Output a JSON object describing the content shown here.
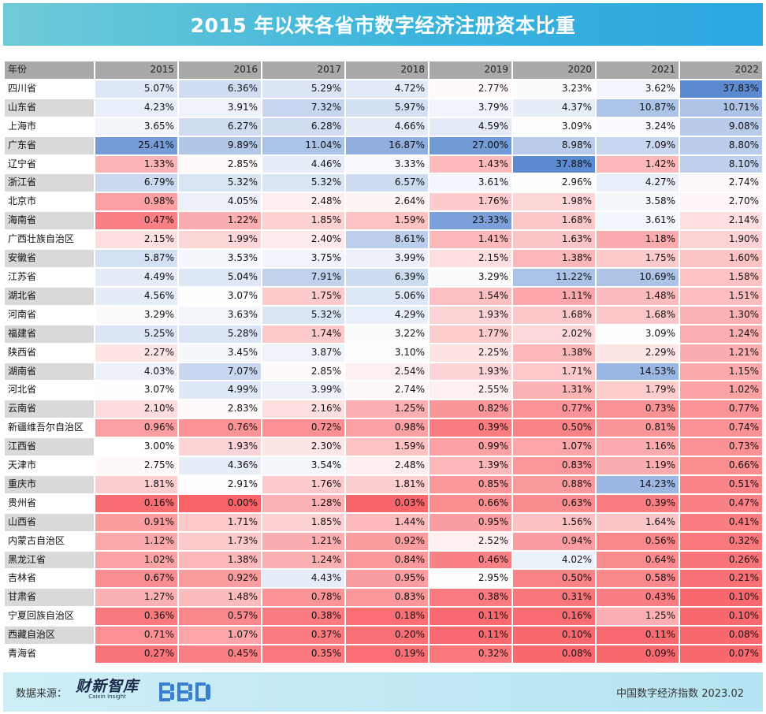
{
  "title": "2015 年以来各省市数字经济注册资本比重",
  "footer": {
    "source_label": "数据来源：",
    "brand_name": "财新智库",
    "brand_sub": "Caixin Insight",
    "logo_text": "BBD",
    "index_label": "中国数字经济指数 2023.02"
  },
  "chart_data": {
    "type": "table",
    "title": "2015 年以来各省市数字经济注册资本比重",
    "header_label": "年份",
    "years": [
      "2015",
      "2016",
      "2017",
      "2018",
      "2019",
      "2020",
      "2021",
      "2022"
    ],
    "unit": "%",
    "color_scale": {
      "low": "#f86368",
      "mid": "#ffffff",
      "high": "#5c8ad0"
    },
    "rows": [
      {
        "province": "四川省",
        "values": [
          5.07,
          6.36,
          5.29,
          4.72,
          2.77,
          3.23,
          3.62,
          37.83
        ]
      },
      {
        "province": "山东省",
        "values": [
          4.23,
          3.91,
          7.32,
          5.97,
          3.79,
          4.37,
          10.87,
          10.71
        ]
      },
      {
        "province": "上海市",
        "values": [
          3.65,
          6.27,
          6.28,
          4.66,
          4.59,
          3.09,
          3.24,
          9.08
        ]
      },
      {
        "province": "广东省",
        "values": [
          25.41,
          9.89,
          11.04,
          16.87,
          27.0,
          8.98,
          7.09,
          8.8
        ]
      },
      {
        "province": "辽宁省",
        "values": [
          1.33,
          2.85,
          4.46,
          3.33,
          1.43,
          37.88,
          1.42,
          8.1
        ]
      },
      {
        "province": "浙江省",
        "values": [
          6.79,
          5.32,
          5.32,
          6.57,
          3.61,
          2.96,
          4.27,
          2.74
        ]
      },
      {
        "province": "北京市",
        "values": [
          0.98,
          4.05,
          2.48,
          2.64,
          1.76,
          1.98,
          3.58,
          2.7
        ]
      },
      {
        "province": "海南省",
        "values": [
          0.47,
          1.22,
          1.85,
          1.59,
          23.33,
          1.68,
          3.61,
          2.14
        ]
      },
      {
        "province": "广西壮族自治区",
        "values": [
          2.15,
          1.99,
          2.4,
          8.61,
          1.41,
          1.63,
          1.18,
          1.9
        ]
      },
      {
        "province": "安徽省",
        "values": [
          5.87,
          3.53,
          3.75,
          3.99,
          2.15,
          1.38,
          1.75,
          1.6
        ]
      },
      {
        "province": "江苏省",
        "values": [
          4.49,
          5.04,
          7.91,
          6.39,
          3.29,
          11.22,
          10.69,
          1.58
        ]
      },
      {
        "province": "湖北省",
        "values": [
          4.56,
          3.07,
          1.75,
          5.06,
          1.54,
          1.11,
          1.48,
          1.51
        ]
      },
      {
        "province": "河南省",
        "values": [
          3.29,
          3.63,
          5.32,
          4.29,
          1.93,
          1.68,
          1.68,
          1.3
        ]
      },
      {
        "province": "福建省",
        "values": [
          5.25,
          5.28,
          1.74,
          3.22,
          1.77,
          2.02,
          3.09,
          1.24
        ]
      },
      {
        "province": "陕西省",
        "values": [
          2.27,
          3.45,
          3.87,
          3.1,
          2.25,
          1.38,
          2.29,
          1.21
        ]
      },
      {
        "province": "湖南省",
        "values": [
          4.03,
          7.07,
          2.85,
          2.54,
          1.93,
          1.71,
          14.53,
          1.15
        ]
      },
      {
        "province": "河北省",
        "values": [
          3.07,
          4.99,
          3.99,
          2.74,
          2.55,
          1.31,
          1.79,
          1.02
        ]
      },
      {
        "province": "云南省",
        "values": [
          2.1,
          2.83,
          2.16,
          1.25,
          0.82,
          0.77,
          0.73,
          0.77
        ]
      },
      {
        "province": "新疆维吾尔自治区",
        "values": [
          0.96,
          0.76,
          0.72,
          0.98,
          0.39,
          0.5,
          0.81,
          0.74
        ]
      },
      {
        "province": "江西省",
        "values": [
          3.0,
          1.93,
          2.3,
          1.59,
          0.99,
          1.07,
          1.16,
          0.73
        ]
      },
      {
        "province": "天津市",
        "values": [
          2.75,
          4.36,
          3.54,
          2.48,
          1.39,
          0.83,
          1.19,
          0.66
        ]
      },
      {
        "province": "重庆市",
        "values": [
          1.81,
          2.91,
          1.76,
          1.81,
          0.85,
          0.88,
          14.23,
          0.51
        ]
      },
      {
        "province": "贵州省",
        "values": [
          0.16,
          0.0,
          1.28,
          0.03,
          0.66,
          0.63,
          0.39,
          0.47
        ]
      },
      {
        "province": "山西省",
        "values": [
          0.91,
          1.71,
          1.85,
          1.44,
          0.95,
          1.56,
          1.64,
          0.41
        ]
      },
      {
        "province": "内蒙古自治区",
        "values": [
          1.12,
          1.73,
          1.21,
          0.92,
          2.52,
          0.94,
          0.56,
          0.32
        ]
      },
      {
        "province": "黑龙江省",
        "values": [
          1.02,
          1.38,
          1.24,
          0.84,
          0.46,
          4.02,
          0.64,
          0.26
        ]
      },
      {
        "province": "吉林省",
        "values": [
          0.67,
          0.92,
          4.43,
          0.95,
          2.95,
          0.5,
          0.58,
          0.21
        ]
      },
      {
        "province": "甘肃省",
        "values": [
          1.27,
          1.48,
          0.78,
          0.83,
          0.38,
          0.31,
          0.43,
          0.1
        ]
      },
      {
        "province": "宁夏回族自治区",
        "values": [
          0.36,
          0.57,
          0.38,
          0.18,
          0.11,
          0.16,
          1.25,
          0.1
        ]
      },
      {
        "province": "西藏自治区",
        "values": [
          0.71,
          1.07,
          0.37,
          0.2,
          0.11,
          0.1,
          0.11,
          0.08
        ]
      },
      {
        "province": "青海省",
        "values": [
          0.27,
          0.45,
          0.35,
          0.19,
          0.32,
          0.08,
          0.09,
          0.07
        ]
      }
    ]
  }
}
